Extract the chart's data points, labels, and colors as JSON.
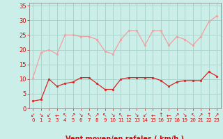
{
  "hours": [
    0,
    1,
    2,
    3,
    4,
    5,
    6,
    7,
    8,
    9,
    10,
    11,
    12,
    13,
    14,
    15,
    16,
    17,
    18,
    19,
    20,
    21,
    22,
    23
  ],
  "wind_avg": [
    2.5,
    3.0,
    10.0,
    7.5,
    8.5,
    9.0,
    10.5,
    10.5,
    8.5,
    6.5,
    6.5,
    10.0,
    10.5,
    10.5,
    10.5,
    10.5,
    9.5,
    7.5,
    9.0,
    9.5,
    9.5,
    9.5,
    12.5,
    11.0
  ],
  "wind_gust": [
    10.5,
    19.0,
    20.0,
    18.5,
    25.0,
    25.0,
    24.5,
    24.5,
    23.5,
    19.5,
    18.5,
    23.5,
    26.5,
    26.5,
    21.5,
    26.5,
    26.5,
    21.5,
    24.5,
    23.5,
    21.5,
    24.5,
    29.5,
    31.5
  ],
  "avg_color": "#dd2222",
  "gust_color": "#f0a0a0",
  "bg_color": "#cceee8",
  "grid_color": "#aad4cc",
  "axis_color": "#dd0000",
  "spine_color": "#888888",
  "ylabel_values": [
    0,
    5,
    10,
    15,
    20,
    25,
    30,
    35
  ],
  "ylim": [
    0,
    36
  ],
  "axis_fontsize": 6,
  "xlabel_fontsize": 7,
  "arrow_chars": [
    "↙",
    "↘",
    "↙",
    "←",
    "↖",
    "↗",
    "↘",
    "↖",
    "↗",
    "↖",
    "↘",
    "↖",
    "←",
    "↘",
    "↙",
    "←",
    "↑",
    "←",
    "↗",
    "↘",
    "↖",
    "↗",
    "↑",
    "↗"
  ]
}
